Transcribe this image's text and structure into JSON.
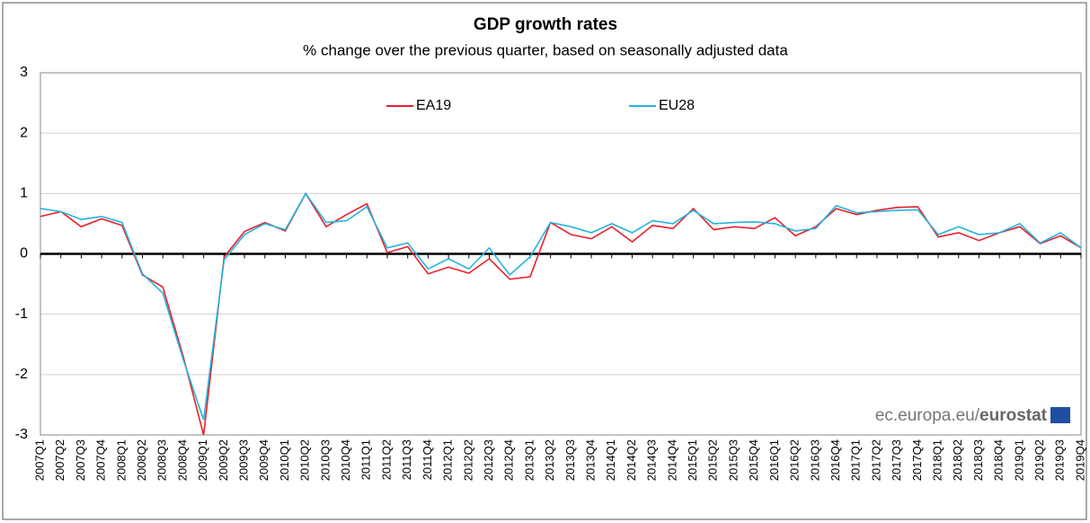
{
  "chart_data": {
    "type": "line",
    "title": "GDP growth rates",
    "subtitle": "% change over the previous quarter, based on seasonally adjusted data",
    "source_prefix": "ec.europa.eu/",
    "source_brand": "eurostat",
    "categories": [
      "2007Q1",
      "2007Q2",
      "2007Q3",
      "2007Q4",
      "2008Q1",
      "2008Q2",
      "2008Q3",
      "2008Q4",
      "2009Q1",
      "2009Q2",
      "2009Q3",
      "2009Q4",
      "2010Q1",
      "2010Q2",
      "2010Q3",
      "2010Q4",
      "2011Q1",
      "2011Q2",
      "2011Q3",
      "2011Q4",
      "2012Q1",
      "2012Q2",
      "2012Q3",
      "2012Q4",
      "2013Q1",
      "2013Q2",
      "2013Q3",
      "2013Q4",
      "2014Q1",
      "2014Q2",
      "2014Q3",
      "2014Q4",
      "2015Q1",
      "2015Q2",
      "2015Q3",
      "2015Q4",
      "2016Q1",
      "2016Q2",
      "2016Q3",
      "2016Q4",
      "2017Q1",
      "2017Q2",
      "2017Q3",
      "2017Q4",
      "2018Q1",
      "2018Q2",
      "2018Q3",
      "2018Q4",
      "2019Q1",
      "2019Q2",
      "2019Q3",
      "2019Q4"
    ],
    "series": [
      {
        "name": "EA19",
        "color": "#e8202a",
        "values": [
          0.62,
          0.7,
          0.45,
          0.58,
          0.47,
          -0.35,
          -0.55,
          -1.7,
          -3.0,
          -0.05,
          0.37,
          0.52,
          0.38,
          1.0,
          0.45,
          0.65,
          0.83,
          0.02,
          0.12,
          -0.33,
          -0.22,
          -0.32,
          -0.08,
          -0.42,
          -0.38,
          0.52,
          0.32,
          0.25,
          0.45,
          0.2,
          0.47,
          0.42,
          0.75,
          0.4,
          0.45,
          0.42,
          0.6,
          0.3,
          0.45,
          0.75,
          0.65,
          0.72,
          0.77,
          0.78,
          0.28,
          0.35,
          0.22,
          0.35,
          0.45,
          0.17,
          0.3,
          0.1
        ]
      },
      {
        "name": "EU28",
        "color": "#22b4dc",
        "values": [
          0.75,
          0.7,
          0.57,
          0.62,
          0.52,
          -0.33,
          -0.65,
          -1.75,
          -2.75,
          -0.1,
          0.32,
          0.5,
          0.4,
          1.0,
          0.52,
          0.55,
          0.78,
          0.1,
          0.18,
          -0.25,
          -0.08,
          -0.25,
          0.1,
          -0.35,
          -0.05,
          0.52,
          0.45,
          0.35,
          0.5,
          0.35,
          0.55,
          0.5,
          0.72,
          0.5,
          0.52,
          0.53,
          0.5,
          0.38,
          0.42,
          0.8,
          0.68,
          0.7,
          0.72,
          0.73,
          0.32,
          0.45,
          0.32,
          0.35,
          0.5,
          0.18,
          0.35,
          0.1
        ]
      }
    ],
    "ylim": [
      -3,
      3
    ],
    "yticks": [
      -3,
      -2,
      -1,
      0,
      1,
      2,
      3
    ],
    "grid": true
  }
}
